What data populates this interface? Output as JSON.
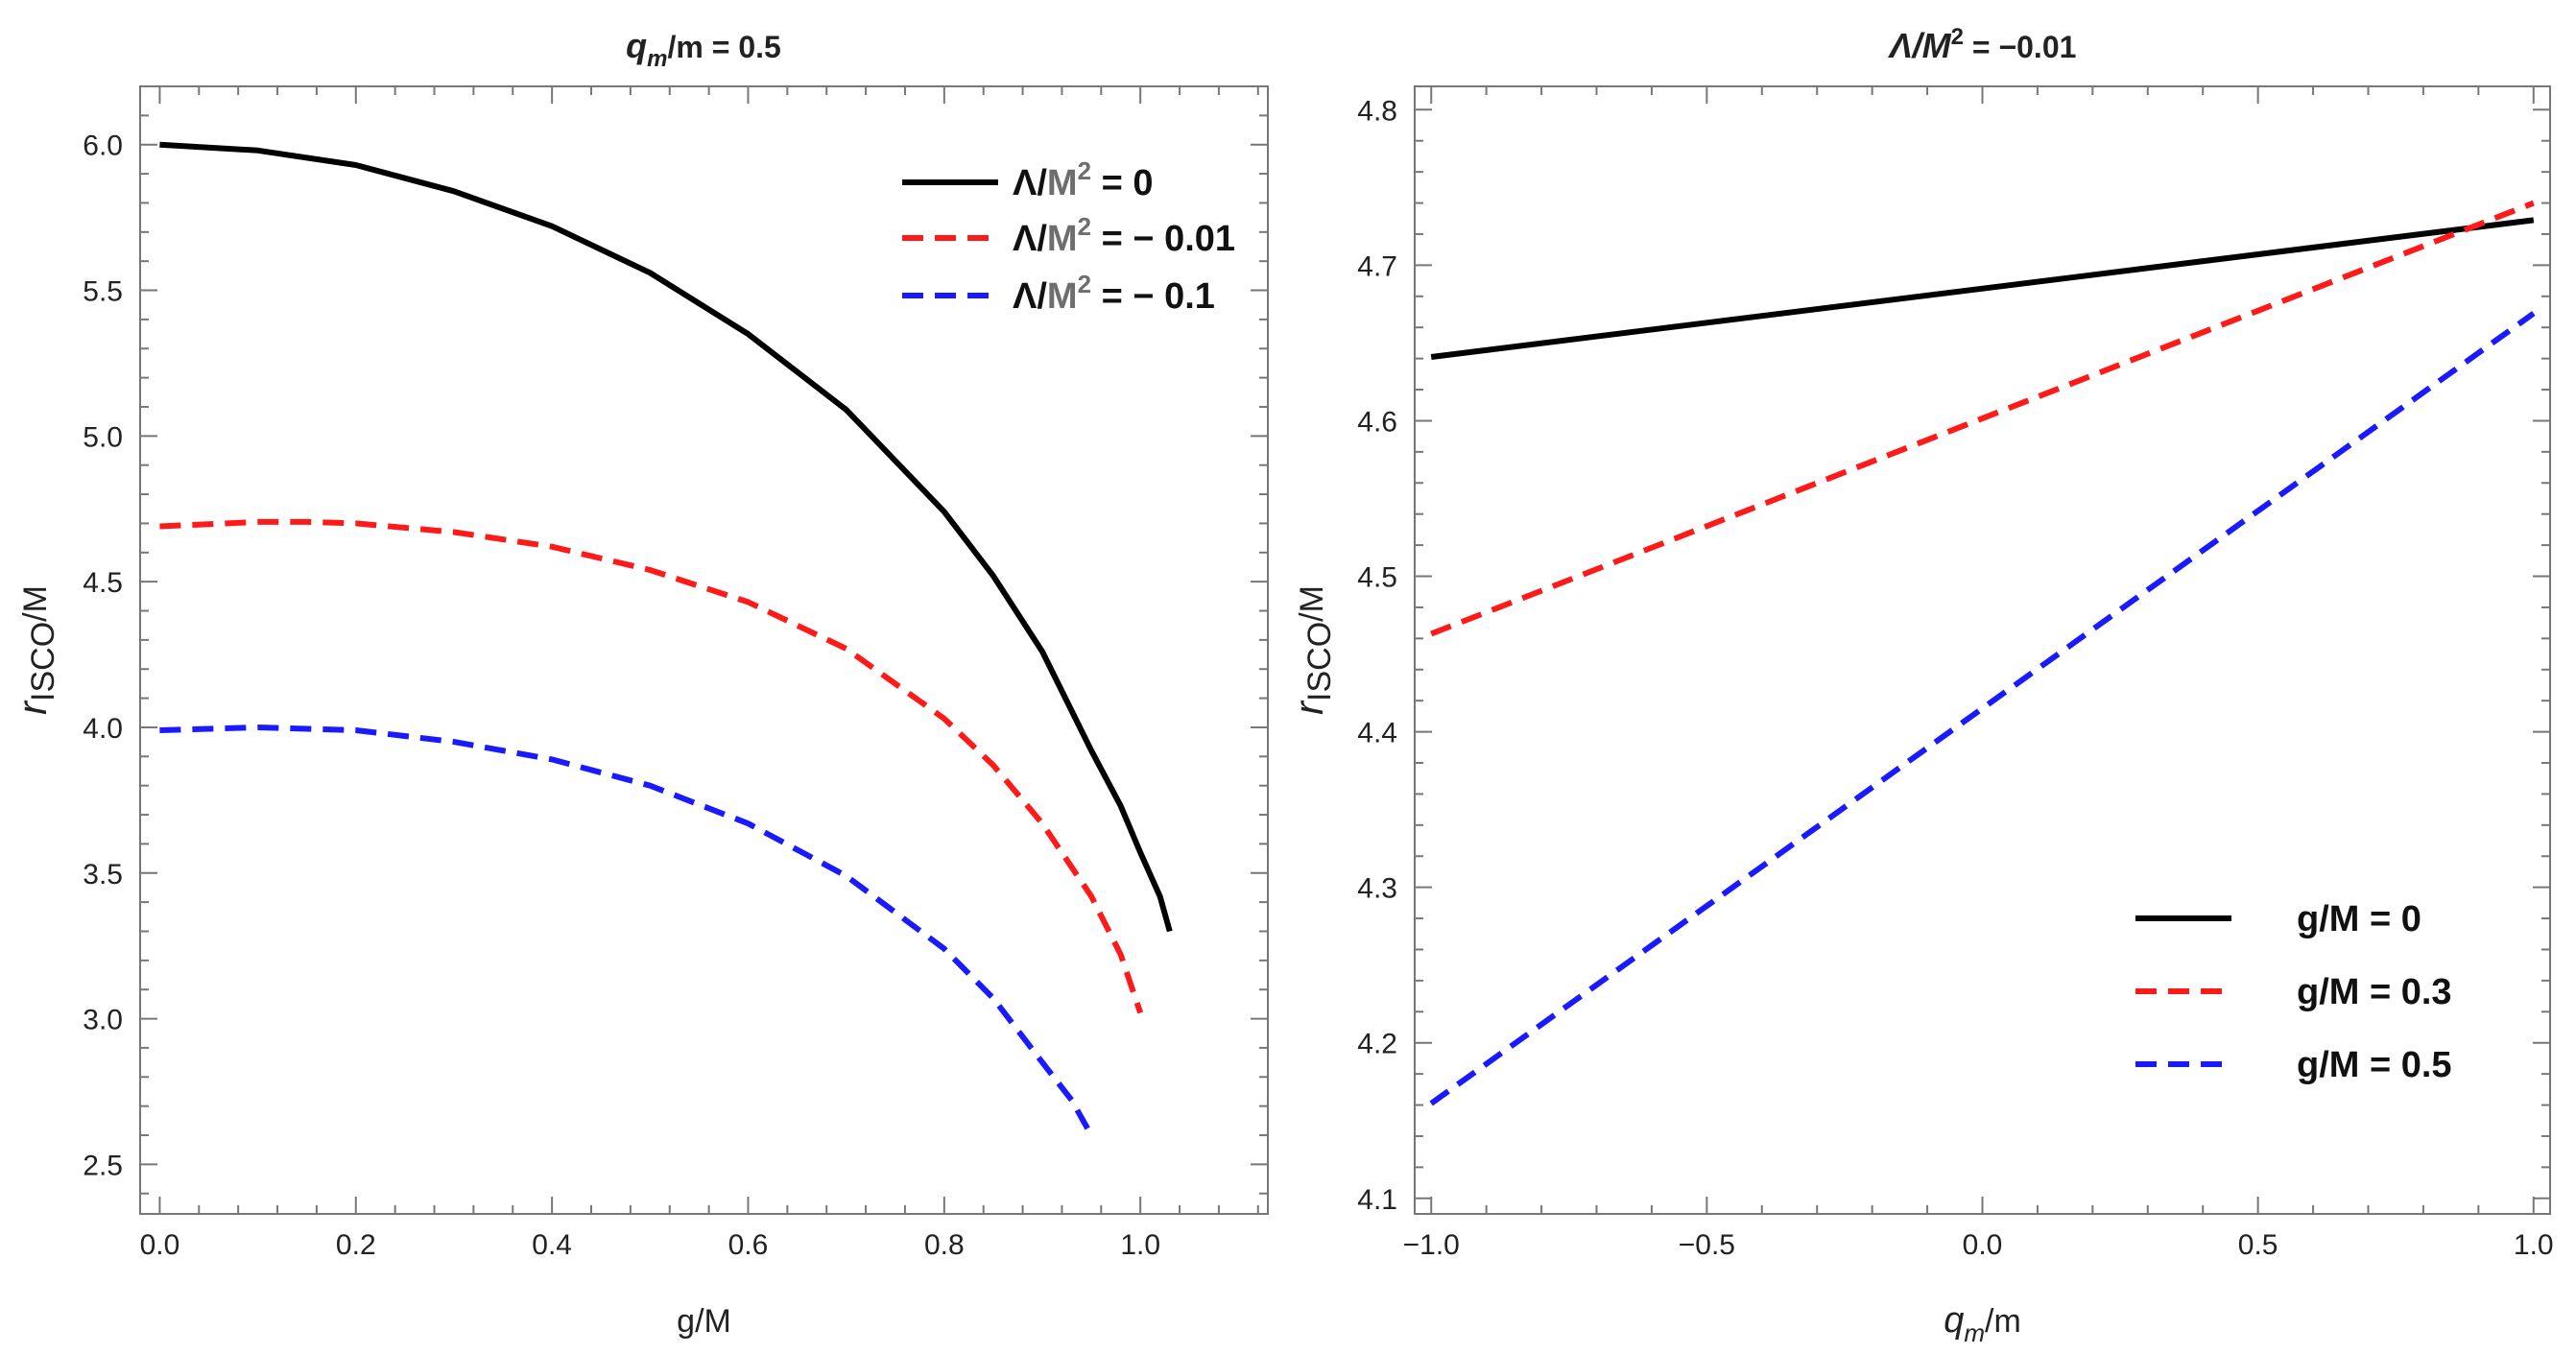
{
  "chart_data": [
    {
      "type": "line",
      "title_main": "q",
      "title_sub": "m",
      "title_rest": "/m = 0.5",
      "xlabel": "g/M",
      "ylabel_main": "r",
      "ylabel_sub": "ISCO",
      "ylabel_rest": "/M",
      "xlim": [
        -0.02,
        1.13
      ],
      "ylim": [
        2.33,
        6.2
      ],
      "xticks": [
        0.0,
        0.2,
        0.4,
        0.6,
        0.8,
        1.0
      ],
      "xtick_labels": [
        "0.0",
        "0.2",
        "0.4",
        "0.6",
        "0.8",
        "1.0"
      ],
      "yticks": [
        2.5,
        3.0,
        3.5,
        4.0,
        4.5,
        5.0,
        5.5,
        6.0
      ],
      "ytick_labels": [
        "2.5",
        "3.0",
        "3.5",
        "4.0",
        "4.5",
        "5.0",
        "5.5",
        "6.0"
      ],
      "legend_position": "top-right",
      "series": [
        {
          "name": "Λ/M² = 0",
          "legend_prefix": "Λ/",
          "legend_mid": "M",
          "legend_sup": "2",
          "legend_suffix": " = 0",
          "color": "#000000",
          "dashed": false,
          "x": [
            0.0,
            0.1,
            0.2,
            0.3,
            0.4,
            0.5,
            0.6,
            0.7,
            0.8,
            0.85,
            0.9,
            0.95,
            0.98,
            1.0,
            1.02,
            1.03
          ],
          "y": [
            6.0,
            5.98,
            5.93,
            5.84,
            5.72,
            5.56,
            5.35,
            5.09,
            4.74,
            4.52,
            4.26,
            3.92,
            3.73,
            3.57,
            3.42,
            3.3
          ]
        },
        {
          "name": "Λ/M² = − 0.01",
          "legend_prefix": "Λ/",
          "legend_mid": "M",
          "legend_sup": "2",
          "legend_suffix": " = − 0.01",
          "color": "#ff1a1a",
          "dashed": true,
          "x": [
            0.0,
            0.1,
            0.15,
            0.2,
            0.3,
            0.4,
            0.5,
            0.6,
            0.7,
            0.8,
            0.85,
            0.9,
            0.95,
            0.98,
            1.0
          ],
          "y": [
            4.69,
            4.705,
            4.705,
            4.7,
            4.67,
            4.62,
            4.54,
            4.43,
            4.27,
            4.03,
            3.87,
            3.67,
            3.42,
            3.22,
            3.02
          ]
        },
        {
          "name": "Λ/M² = − 0.1",
          "legend_prefix": "Λ/",
          "legend_mid": "M",
          "legend_sup": "2",
          "legend_suffix": " = − 0.1",
          "color": "#1a1aff",
          "dashed": true,
          "x": [
            0.0,
            0.05,
            0.1,
            0.15,
            0.2,
            0.3,
            0.4,
            0.5,
            0.6,
            0.7,
            0.8,
            0.85,
            0.9,
            0.93,
            0.95
          ],
          "y": [
            3.99,
            3.995,
            4.0,
            3.995,
            3.99,
            3.95,
            3.89,
            3.8,
            3.67,
            3.49,
            3.24,
            3.07,
            2.85,
            2.72,
            2.6
          ]
        }
      ]
    },
    {
      "type": "line",
      "title_main": "Λ/M",
      "title_sup": "2",
      "title_rest": " = −0.01",
      "xlabel_main": "q",
      "xlabel_sub": "m",
      "xlabel_rest": "/m",
      "ylabel_main": "r",
      "ylabel_sub": "ISCO",
      "ylabel_rest": "/M",
      "xlim": [
        -1.03,
        1.03
      ],
      "ylim": [
        4.09,
        4.815
      ],
      "xticks": [
        -1.0,
        -0.5,
        0.0,
        0.5,
        1.0
      ],
      "xtick_labels": [
        "−1.0",
        "−0.5",
        "0.0",
        "0.5",
        "1.0"
      ],
      "yticks": [
        4.1,
        4.2,
        4.3,
        4.4,
        4.5,
        4.6,
        4.7,
        4.8
      ],
      "ytick_labels": [
        "4.1",
        "4.2",
        "4.3",
        "4.4",
        "4.5",
        "4.6",
        "4.7",
        "4.8"
      ],
      "legend_position": "bottom-right",
      "series": [
        {
          "name": "g/M = 0",
          "color": "#000000",
          "dashed": false,
          "x": [
            -1.0,
            1.0
          ],
          "y": [
            4.641,
            4.729
          ]
        },
        {
          "name": "g/M = 0.3",
          "color": "#ff1a1a",
          "dashed": true,
          "x": [
            -1.0,
            1.0
          ],
          "y": [
            4.463,
            4.74
          ]
        },
        {
          "name": "g/M = 0.5",
          "color": "#1a1aff",
          "dashed": true,
          "x": [
            -1.0,
            1.0
          ],
          "y": [
            4.161,
            4.669
          ]
        }
      ]
    }
  ]
}
